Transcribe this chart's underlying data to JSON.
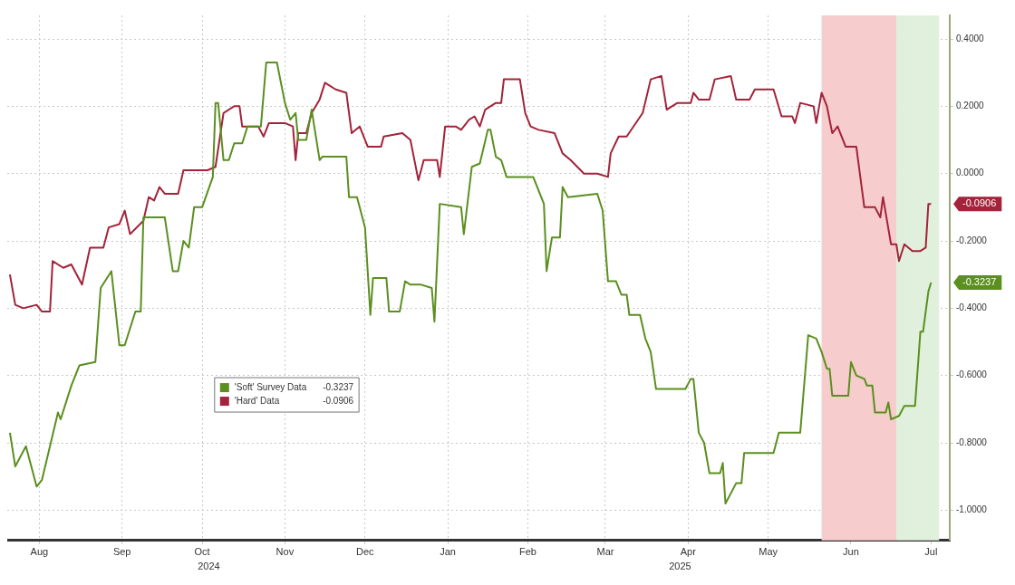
{
  "chart_data": {
    "type": "line",
    "xlim": [
      "2024-08-03",
      "2025-07-22"
    ],
    "xticks": [
      {
        "value": "2024-08-15",
        "label": "Aug"
      },
      {
        "value": "2024-09-15",
        "label": "Sep"
      },
      {
        "value": "2024-10-15",
        "label": "Oct"
      },
      {
        "value": "2024-11-15",
        "label": "Nov"
      },
      {
        "value": "2024-12-15",
        "label": "Dec"
      },
      {
        "value": "2025-01-15",
        "label": "Jan"
      },
      {
        "value": "2025-02-14",
        "label": "Feb"
      },
      {
        "value": "2025-03-15",
        "label": "Mar"
      },
      {
        "value": "2025-04-15",
        "label": "Apr"
      },
      {
        "value": "2025-05-15",
        "label": "May"
      },
      {
        "value": "2025-06-15",
        "label": "Jun"
      },
      {
        "value": "2025-07-15",
        "label": "Jul"
      }
    ],
    "ylim": [
      -1.09,
      0.47
    ],
    "yticks": [
      {
        "value": 0.4,
        "label": "0.4000"
      },
      {
        "value": 0.2,
        "label": "0.2000"
      },
      {
        "value": 0,
        "label": "0.0000"
      },
      {
        "value": -0.2,
        "label": "-0.2000"
      },
      {
        "value": -0.4,
        "label": "-0.4000"
      },
      {
        "value": -0.6,
        "label": "-0.6000"
      },
      {
        "value": -0.8,
        "label": "-0.8000"
      },
      {
        "value": -1,
        "label": "-1.0000"
      }
    ],
    "grid": true,
    "legend": "bottom left",
    "marker": "none",
    "line_style": "solid",
    "bands": [
      {
        "axis": "x",
        "from": "2025-06-04",
        "to": "2025-07-02",
        "color": "#f6cccc"
      },
      {
        "axis": "x",
        "from": "2025-07-02",
        "to": "2025-07-18",
        "color": "#e0f0dc"
      }
    ],
    "annotations": [
      "2024",
      "2025",
      "-0.3237",
      "-0.0906"
    ],
    "series": [
      {
        "name": "'Soft' Survey Data",
        "color": "#5b8f1f",
        "x": [
          "2024-08-04",
          "2024-08-06",
          "2024-08-10",
          "2024-08-14",
          "2024-08-16",
          "2024-08-22",
          "2024-08-23",
          "2024-08-27",
          "2024-08-30",
          "2024-09-05",
          "2024-09-07",
          "2024-09-11",
          "2024-09-14",
          "2024-09-16",
          "2024-09-20",
          "2024-09-22",
          "2024-09-23",
          "2024-10-01",
          "2024-10-04",
          "2024-10-06",
          "2024-10-08",
          "2024-10-10",
          "2024-10-12",
          "2024-10-15",
          "2024-10-19",
          "2024-10-20",
          "2024-10-21",
          "2024-10-23",
          "2024-10-25",
          "2024-10-27",
          "2024-10-30",
          "2024-11-01",
          "2024-11-06",
          "2024-11-08",
          "2024-11-12",
          "2024-11-15",
          "2024-11-17",
          "2024-11-19",
          "2024-11-20",
          "2024-11-23",
          "2024-11-25",
          "2024-11-28",
          "2024-11-29",
          "2024-12-08",
          "2024-12-09",
          "2024-12-12",
          "2024-12-15",
          "2024-12-17",
          "2024-12-18",
          "2024-12-23",
          "2024-12-24",
          "2024-12-28",
          "2024-12-30",
          "2025-01-01",
          "2025-01-05",
          "2025-01-09",
          "2025-01-10",
          "2025-01-12",
          "2025-01-20",
          "2025-01-21",
          "2025-01-24",
          "2025-01-27",
          "2025-01-30",
          "2025-01-31",
          "2025-02-02",
          "2025-02-04",
          "2025-02-06",
          "2025-02-16",
          "2025-02-20",
          "2025-02-21",
          "2025-02-23",
          "2025-02-26",
          "2025-02-27",
          "2025-03-01",
          "2025-03-12",
          "2025-03-14",
          "2025-03-16",
          "2025-03-19",
          "2025-03-21",
          "2025-03-23",
          "2025-03-24",
          "2025-03-28",
          "2025-03-30",
          "2025-04-01",
          "2025-04-03",
          "2025-04-14",
          "2025-04-16",
          "2025-04-17",
          "2025-04-19",
          "2025-04-21",
          "2025-04-23",
          "2025-04-27",
          "2025-04-28",
          "2025-04-29",
          "2025-05-03",
          "2025-05-05",
          "2025-05-06",
          "2025-05-17",
          "2025-05-19",
          "2025-05-27",
          "2025-05-30",
          "2025-06-02",
          "2025-06-04",
          "2025-06-06",
          "2025-06-07",
          "2025-06-08",
          "2025-06-14",
          "2025-06-15",
          "2025-06-17",
          "2025-06-20",
          "2025-06-21",
          "2025-06-23",
          "2025-06-24",
          "2025-06-28",
          "2025-06-29",
          "2025-06-30",
          "2025-07-03",
          "2025-07-05",
          "2025-07-09",
          "2025-07-11",
          "2025-07-12",
          "2025-07-14",
          "2025-07-15"
        ],
        "values": [
          -0.77,
          -0.87,
          -0.81,
          -0.93,
          -0.91,
          -0.71,
          -0.73,
          -0.63,
          -0.57,
          -0.56,
          -0.34,
          -0.29,
          -0.51,
          -0.51,
          -0.41,
          -0.41,
          -0.13,
          -0.13,
          -0.29,
          -0.29,
          -0.2,
          -0.22,
          -0.1,
          -0.1,
          -0.01,
          0.21,
          0.21,
          0.04,
          0.04,
          0.09,
          0.09,
          0.14,
          0.14,
          0.33,
          0.33,
          0.21,
          0.16,
          0.18,
          0.1,
          0.1,
          0.19,
          0.04,
          0.05,
          0.05,
          -0.07,
          -0.07,
          -0.16,
          -0.42,
          -0.31,
          -0.31,
          -0.41,
          -0.41,
          -0.32,
          -0.33,
          -0.33,
          -0.34,
          -0.44,
          -0.09,
          -0.1,
          -0.18,
          0.02,
          0.03,
          0.13,
          0.13,
          0.05,
          0.04,
          -0.01,
          -0.01,
          -0.09,
          -0.29,
          -0.19,
          -0.19,
          -0.04,
          -0.07,
          -0.06,
          -0.11,
          -0.32,
          -0.32,
          -0.36,
          -0.36,
          -0.42,
          -0.42,
          -0.49,
          -0.53,
          -0.64,
          -0.64,
          -0.61,
          -0.61,
          -0.77,
          -0.8,
          -0.89,
          -0.89,
          -0.86,
          -0.98,
          -0.92,
          -0.92,
          -0.83,
          -0.83,
          -0.77,
          -0.77,
          -0.48,
          -0.49,
          -0.53,
          -0.58,
          -0.58,
          -0.66,
          -0.66,
          -0.56,
          -0.6,
          -0.61,
          -0.63,
          -0.63,
          -0.71,
          -0.71,
          -0.68,
          -0.73,
          -0.72,
          -0.69,
          -0.69,
          -0.47,
          -0.47,
          -0.35,
          -0.3237
        ]
      },
      {
        "name": "'Hard' Data",
        "color": "#a3233a",
        "x": [
          "2024-08-04",
          "2024-08-06",
          "2024-08-09",
          "2024-08-14",
          "2024-08-16",
          "2024-08-19",
          "2024-08-20",
          "2024-08-24",
          "2024-08-27",
          "2024-08-31",
          "2024-09-03",
          "2024-09-08",
          "2024-09-10",
          "2024-09-14",
          "2024-09-16",
          "2024-09-18",
          "2024-09-23",
          "2024-09-25",
          "2024-09-27",
          "2024-09-29",
          "2024-10-01",
          "2024-10-06",
          "2024-10-08",
          "2024-10-17",
          "2024-10-20",
          "2024-10-23",
          "2024-10-27",
          "2024-10-29",
          "2024-10-30",
          "2024-11-05",
          "2024-11-07",
          "2024-11-09",
          "2024-11-15",
          "2024-11-18",
          "2024-11-19",
          "2024-11-20",
          "2024-11-23",
          "2024-11-25",
          "2024-11-28",
          "2024-11-30",
          "2024-12-04",
          "2024-12-08",
          "2024-12-10",
          "2024-12-13",
          "2024-12-16",
          "2024-12-21",
          "2024-12-22",
          "2024-12-29",
          "2025-01-01",
          "2025-01-04",
          "2025-01-06",
          "2025-01-11",
          "2025-01-12",
          "2025-01-14",
          "2025-01-18",
          "2025-01-20",
          "2025-01-23",
          "2025-01-25",
          "2025-01-27",
          "2025-01-29",
          "2025-02-02",
          "2025-02-04",
          "2025-02-05",
          "2025-02-11",
          "2025-02-13",
          "2025-02-15",
          "2025-02-18",
          "2025-02-24",
          "2025-02-27",
          "2025-03-02",
          "2025-03-07",
          "2025-03-12",
          "2025-03-16",
          "2025-03-17",
          "2025-03-20",
          "2025-03-23",
          "2025-03-29",
          "2025-04-01",
          "2025-04-05",
          "2025-04-07",
          "2025-04-11",
          "2025-04-16",
          "2025-04-17",
          "2025-04-19",
          "2025-04-23",
          "2025-04-25",
          "2025-05-01",
          "2025-05-03",
          "2025-05-08",
          "2025-05-10",
          "2025-05-17",
          "2025-05-20",
          "2025-05-24",
          "2025-05-25",
          "2025-05-27",
          "2025-06-01",
          "2025-06-02",
          "2025-06-04",
          "2025-06-06",
          "2025-06-08",
          "2025-06-10",
          "2025-06-13",
          "2025-06-17",
          "2025-06-20",
          "2025-06-24",
          "2025-06-26",
          "2025-06-27",
          "2025-06-30",
          "2025-07-02",
          "2025-07-03",
          "2025-07-05",
          "2025-07-08",
          "2025-07-11",
          "2025-07-13",
          "2025-07-14",
          "2025-07-15"
        ],
        "values": [
          -0.3,
          -0.39,
          -0.4,
          -0.39,
          -0.41,
          -0.41,
          -0.26,
          -0.28,
          -0.27,
          -0.33,
          -0.22,
          -0.22,
          -0.16,
          -0.15,
          -0.11,
          -0.18,
          -0.14,
          -0.07,
          -0.08,
          -0.04,
          -0.06,
          -0.06,
          0.01,
          0.01,
          0.02,
          0.18,
          0.2,
          0.2,
          0.14,
          0.14,
          0.11,
          0.15,
          0.15,
          0.14,
          0.04,
          0.12,
          0.12,
          0.18,
          0.22,
          0.27,
          0.25,
          0.24,
          0.12,
          0.14,
          0.08,
          0.08,
          0.11,
          0.12,
          0.1,
          -0.02,
          0.04,
          0.04,
          -0.01,
          0.14,
          0.14,
          0.13,
          0.16,
          0.17,
          0.14,
          0.19,
          0.21,
          0.21,
          0.28,
          0.28,
          0.18,
          0.14,
          0.13,
          0.12,
          0.06,
          0.04,
          0,
          0,
          -0.01,
          0.06,
          0.11,
          0.11,
          0.18,
          0.28,
          0.29,
          0.19,
          0.21,
          0.21,
          0.24,
          0.22,
          0.22,
          0.28,
          0.29,
          0.22,
          0.22,
          0.25,
          0.25,
          0.17,
          0.17,
          0.15,
          0.21,
          0.2,
          0.15,
          0.24,
          0.2,
          0.12,
          0.14,
          0.08,
          0.08,
          -0.1,
          -0.1,
          -0.13,
          -0.07,
          -0.21,
          -0.21,
          -0.26,
          -0.21,
          -0.23,
          -0.23,
          -0.22,
          -0.09,
          -0.0906
        ]
      }
    ]
  }
}
